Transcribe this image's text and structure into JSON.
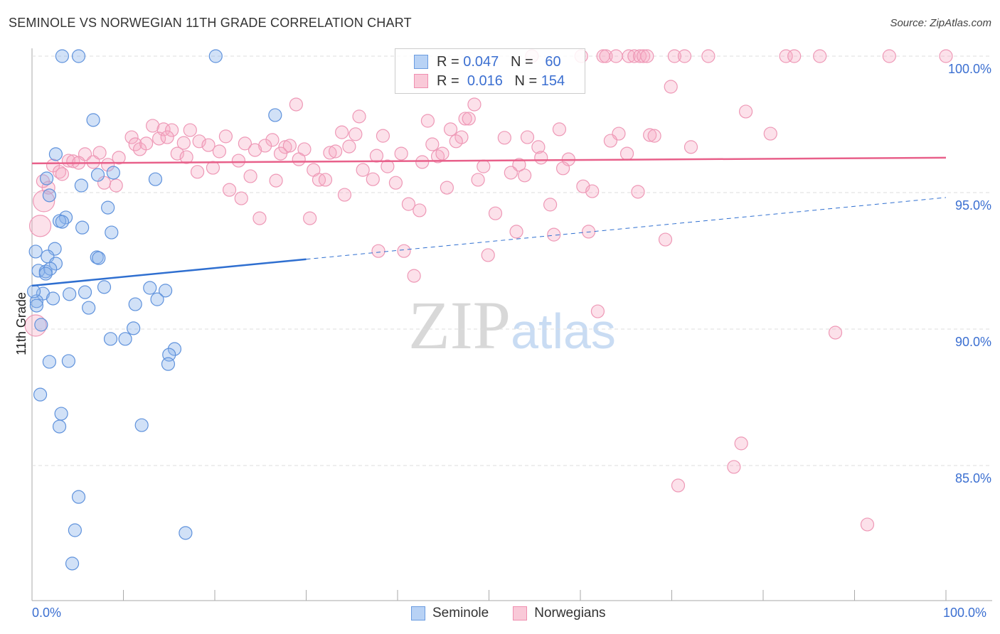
{
  "title": "SEMINOLE VS NORWEGIAN 11TH GRADE CORRELATION CHART",
  "source": "Source: ZipAtlas.com",
  "watermark": "ZIPatlas",
  "legend": {
    "r_label": "R =",
    "n_label": "N =",
    "series": [
      {
        "name": "Seminole",
        "r": "0.047",
        "n": "60"
      },
      {
        "name": "Norwegians",
        "r": "0.016",
        "n": "154"
      }
    ]
  },
  "chart_data": {
    "type": "scatter",
    "title": "SEMINOLE VS NORWEGIAN 11TH GRADE CORRELATION CHART",
    "xlabel": "",
    "ylabel": "11th Grade",
    "xlim": [
      0,
      100
    ],
    "ylim": [
      80.8,
      100.4
    ],
    "x_tick_labels": [
      "0.0%",
      "100.0%"
    ],
    "y_ticks": [
      85,
      90,
      95,
      100
    ],
    "y_tick_labels": [
      "85.0%",
      "90.0%",
      "95.0%",
      "100.0%"
    ],
    "grid": true,
    "legend_position": "top-center",
    "colors": {
      "Seminole": "#6a9be0",
      "Norwegians": "#ef8fb0",
      "Seminole_line": "#2f6fd0",
      "Norwegians_line": "#e8608a"
    },
    "series": [
      {
        "name": "Seminole",
        "trend": {
          "y_at_0": 91.59,
          "y_at_100": 94.82,
          "solid_until": 30
        },
        "points": [
          [
            3.3,
            100
          ],
          [
            5.1,
            100
          ],
          [
            20.1,
            100
          ],
          [
            6.7,
            97.66
          ],
          [
            26.6,
            97.84
          ],
          [
            2.6,
            96.41
          ],
          [
            1.6,
            95.52
          ],
          [
            7.2,
            95.65
          ],
          [
            8.9,
            95.73
          ],
          [
            13.5,
            95.49
          ],
          [
            5.4,
            95.26
          ],
          [
            1.9,
            94.9
          ],
          [
            8.3,
            94.45
          ],
          [
            3.7,
            94.09
          ],
          [
            3.0,
            93.96
          ],
          [
            3.3,
            93.93
          ],
          [
            5.5,
            93.72
          ],
          [
            8.7,
            93.54
          ],
          [
            2.5,
            92.94
          ],
          [
            0.4,
            92.84
          ],
          [
            1.7,
            92.66
          ],
          [
            7.1,
            92.63
          ],
          [
            7.3,
            92.6
          ],
          [
            2.6,
            92.4
          ],
          [
            0.7,
            92.14
          ],
          [
            1.5,
            92.11
          ],
          [
            2.0,
            92.21
          ],
          [
            1.2,
            91.3
          ],
          [
            0.5,
            91.02
          ],
          [
            2.3,
            91.12
          ],
          [
            4.1,
            91.28
          ],
          [
            5.8,
            91.35
          ],
          [
            7.9,
            91.54
          ],
          [
            12.9,
            91.51
          ],
          [
            14.6,
            91.41
          ],
          [
            11.3,
            90.91
          ],
          [
            13.7,
            91.09
          ],
          [
            6.2,
            90.78
          ],
          [
            1.0,
            90.16
          ],
          [
            11.1,
            90.03
          ],
          [
            8.6,
            89.64
          ],
          [
            10.2,
            89.64
          ],
          [
            15.6,
            89.27
          ],
          [
            15.0,
            89.06
          ],
          [
            14.9,
            88.72
          ],
          [
            1.9,
            88.8
          ],
          [
            4.0,
            88.83
          ],
          [
            0.9,
            87.6
          ],
          [
            3.2,
            86.9
          ],
          [
            3.0,
            86.43
          ],
          [
            12.0,
            86.48
          ],
          [
            5.1,
            83.85
          ],
          [
            4.7,
            82.63
          ],
          [
            16.8,
            82.53
          ],
          [
            4.4,
            81.41
          ],
          [
            0.2,
            91.38
          ],
          [
            0.5,
            90.86
          ],
          [
            1.5,
            92.03
          ]
        ]
      },
      {
        "name": "Norwegians",
        "trend": {
          "y_at_0": 96.07,
          "y_at_100": 96.28,
          "solid_until": 100
        },
        "points": [
          [
            54.7,
            100
          ],
          [
            60.1,
            100
          ],
          [
            62.5,
            100
          ],
          [
            62.8,
            100
          ],
          [
            63.9,
            100
          ],
          [
            65.3,
            100
          ],
          [
            65.9,
            100
          ],
          [
            66.5,
            100
          ],
          [
            66.9,
            100
          ],
          [
            67.3,
            100
          ],
          [
            70.3,
            100
          ],
          [
            71.4,
            100
          ],
          [
            74.0,
            100
          ],
          [
            82.5,
            100
          ],
          [
            83.4,
            100
          ],
          [
            86.2,
            100
          ],
          [
            93.8,
            100
          ],
          [
            100,
            100
          ],
          [
            69.9,
            98.88
          ],
          [
            28.9,
            98.23
          ],
          [
            78.1,
            97.97
          ],
          [
            35.8,
            97.79
          ],
          [
            48.4,
            98.23
          ],
          [
            43.3,
            97.63
          ],
          [
            47.4,
            97.71
          ],
          [
            47.8,
            97.71
          ],
          [
            13.2,
            97.45
          ],
          [
            17.3,
            97.29
          ],
          [
            14.4,
            97.32
          ],
          [
            15.3,
            97.29
          ],
          [
            33.9,
            97.21
          ],
          [
            35.4,
            97.14
          ],
          [
            38.4,
            97.08
          ],
          [
            45.8,
            97.32
          ],
          [
            47.0,
            97.03
          ],
          [
            51.7,
            97.01
          ],
          [
            54.2,
            97.03
          ],
          [
            57.7,
            97.32
          ],
          [
            64.2,
            97.16
          ],
          [
            80.8,
            97.16
          ],
          [
            67.6,
            97.11
          ],
          [
            68.1,
            97.08
          ],
          [
            10.9,
            97.03
          ],
          [
            21.2,
            97.06
          ],
          [
            26.3,
            96.93
          ],
          [
            13.9,
            96.98
          ],
          [
            14.8,
            97.03
          ],
          [
            18.3,
            96.88
          ],
          [
            19.3,
            96.74
          ],
          [
            16.6,
            96.82
          ],
          [
            11.3,
            96.77
          ],
          [
            11.8,
            96.59
          ],
          [
            12.5,
            96.8
          ],
          [
            23.3,
            96.8
          ],
          [
            25.5,
            96.72
          ],
          [
            27.7,
            96.67
          ],
          [
            28.2,
            96.72
          ],
          [
            29.8,
            96.59
          ],
          [
            34.7,
            96.69
          ],
          [
            43.8,
            96.77
          ],
          [
            46.4,
            96.88
          ],
          [
            55.4,
            96.67
          ],
          [
            63.3,
            96.9
          ],
          [
            72.1,
            96.67
          ],
          [
            7.4,
            96.46
          ],
          [
            9.5,
            96.28
          ],
          [
            15.9,
            96.43
          ],
          [
            20.5,
            96.51
          ],
          [
            24.4,
            96.56
          ],
          [
            27.2,
            96.43
          ],
          [
            22.6,
            96.17
          ],
          [
            29.2,
            96.22
          ],
          [
            32.6,
            96.46
          ],
          [
            33.2,
            96.51
          ],
          [
            37.7,
            96.35
          ],
          [
            40.4,
            96.43
          ],
          [
            42.7,
            96.12
          ],
          [
            44.4,
            96.33
          ],
          [
            44.9,
            96.43
          ],
          [
            16.9,
            96.3
          ],
          [
            5.8,
            96.41
          ],
          [
            4.0,
            96.17
          ],
          [
            4.5,
            96.15
          ],
          [
            5.1,
            96.09
          ],
          [
            6.7,
            96.12
          ],
          [
            8.3,
            96.02
          ],
          [
            2.3,
            95.99
          ],
          [
            3.0,
            95.76
          ],
          [
            3.3,
            95.68
          ],
          [
            19.8,
            95.91
          ],
          [
            18.1,
            95.76
          ],
          [
            30.8,
            95.83
          ],
          [
            36.2,
            95.83
          ],
          [
            38.9,
            95.96
          ],
          [
            49.4,
            95.96
          ],
          [
            53.3,
            96.02
          ],
          [
            55.7,
            96.28
          ],
          [
            58.7,
            96.22
          ],
          [
            65.1,
            96.43
          ],
          [
            52.4,
            95.73
          ],
          [
            53.9,
            95.63
          ],
          [
            58.1,
            95.89
          ],
          [
            23.9,
            95.6
          ],
          [
            26.7,
            95.44
          ],
          [
            31.4,
            95.47
          ],
          [
            32.1,
            95.47
          ],
          [
            37.3,
            95.49
          ],
          [
            39.8,
            95.36
          ],
          [
            48.8,
            95.47
          ],
          [
            7.9,
            95.36
          ],
          [
            9.2,
            95.26
          ],
          [
            21.6,
            95.1
          ],
          [
            34.2,
            94.92
          ],
          [
            45.4,
            95.18
          ],
          [
            60.3,
            95.23
          ],
          [
            61.3,
            95.05
          ],
          [
            66.3,
            95.03
          ],
          [
            22.9,
            94.79
          ],
          [
            41.2,
            94.58
          ],
          [
            42.4,
            94.35
          ],
          [
            50.7,
            94.24
          ],
          [
            56.7,
            94.56
          ],
          [
            24.9,
            94.06
          ],
          [
            30.4,
            94.06
          ],
          [
            53.0,
            93.57
          ],
          [
            57.1,
            93.46
          ],
          [
            60.9,
            93.57
          ],
          [
            69.3,
            93.28
          ],
          [
            37.9,
            92.86
          ],
          [
            40.7,
            92.86
          ],
          [
            49.9,
            92.71
          ],
          [
            41.8,
            91.95
          ],
          [
            61.9,
            90.65
          ],
          [
            87.9,
            89.87
          ],
          [
            77.6,
            85.81
          ],
          [
            76.8,
            84.95
          ],
          [
            70.7,
            84.27
          ],
          [
            91.4,
            82.84
          ],
          [
            1.8,
            95.18
          ],
          [
            1.2,
            95.42
          ]
        ],
        "large_points": [
          [
            1.3,
            94.69
          ],
          [
            0.9,
            93.78
          ],
          [
            0.4,
            90.13
          ]
        ]
      }
    ]
  }
}
